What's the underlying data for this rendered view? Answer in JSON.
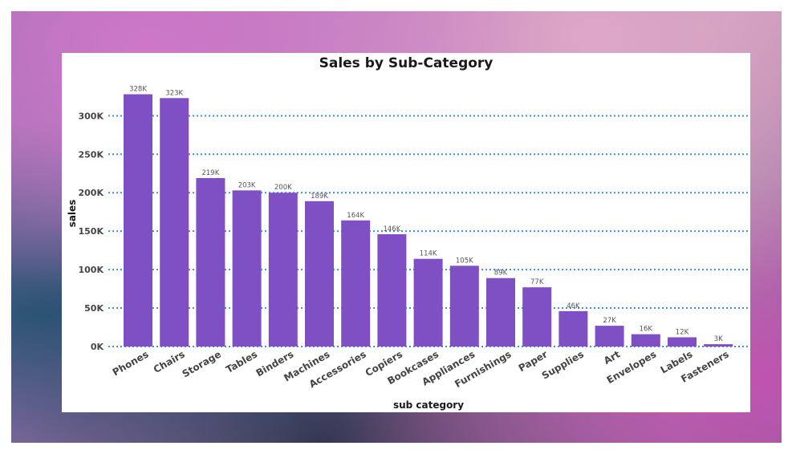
{
  "chart_data": {
    "type": "bar",
    "title": "Sales by Sub-Category",
    "xlabel": "sub category",
    "ylabel": "sales",
    "ylim": [
      0,
      340000
    ],
    "yticks": [
      0,
      50000,
      100000,
      150000,
      200000,
      250000,
      300000
    ],
    "ytick_labels": [
      "0K",
      "50K",
      "100K",
      "150K",
      "200K",
      "250K",
      "300K"
    ],
    "grid": true,
    "categories": [
      "Phones",
      "Chairs",
      "Storage",
      "Tables",
      "Binders",
      "Machines",
      "Accessories",
      "Copiers",
      "Bookcases",
      "Appliances",
      "Furnishings",
      "Paper",
      "Supplies",
      "Art",
      "Envelopes",
      "Labels",
      "Fasteners"
    ],
    "values": [
      328000,
      323000,
      219000,
      203000,
      200000,
      189000,
      164000,
      146000,
      114000,
      105000,
      89000,
      77000,
      46000,
      27000,
      16000,
      12000,
      3000
    ],
    "data_labels": [
      "328K",
      "323K",
      "219K",
      "203K",
      "200K",
      "189K",
      "164K",
      "146K",
      "114K",
      "105K",
      "89K",
      "77K",
      "46K",
      "27K",
      "16K",
      "12K",
      "3K"
    ],
    "colors": {
      "bar": "#7f4fc4",
      "grid": "#3b8fe0"
    }
  }
}
